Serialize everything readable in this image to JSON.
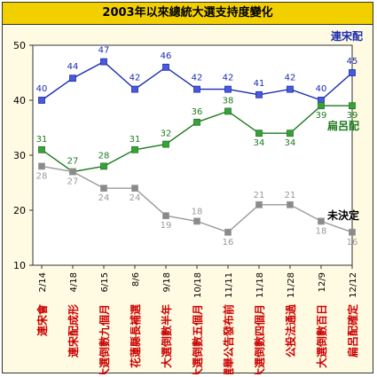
{
  "chart_data": {
    "type": "line",
    "title": "2003年以來總統大選支持度變化",
    "categories": [
      "2/14",
      "4/18",
      "6/15",
      "8/6",
      "9/18",
      "10/18",
      "11/11",
      "11/18",
      "11/28",
      "12/9",
      "12/12"
    ],
    "events": [
      "連宋會",
      "連宋配成形",
      "大選倒數九個月",
      "花蓮縣長補選",
      "大選倒數半年",
      "大選倒數五個月",
      "選舉公告發布前",
      "大選倒數四個月",
      "公投法通過",
      "大選倒數百日",
      "扁呂配確定"
    ],
    "ylim": [
      10,
      50
    ],
    "yticks": [
      10,
      20,
      30,
      40,
      50
    ],
    "grid": false,
    "series": [
      {
        "name": "連宋配",
        "values": [
          40,
          44,
          47,
          42,
          46,
          42,
          42,
          41,
          42,
          40,
          45
        ],
        "color": "#1a2cb0",
        "fill": "#4a5ad8"
      },
      {
        "name": "扁呂配",
        "values": [
          31,
          27,
          28,
          31,
          32,
          36,
          38,
          34,
          34,
          39,
          39
        ],
        "color": "#1f7a1f",
        "fill": "#3aa03a"
      },
      {
        "name": "未決定",
        "values": [
          28,
          27,
          24,
          24,
          19,
          18,
          16,
          21,
          21,
          18,
          16
        ],
        "color": "#9a9a9a",
        "fill": "#8a8a8a",
        "labelColor": "#000"
      }
    ]
  }
}
